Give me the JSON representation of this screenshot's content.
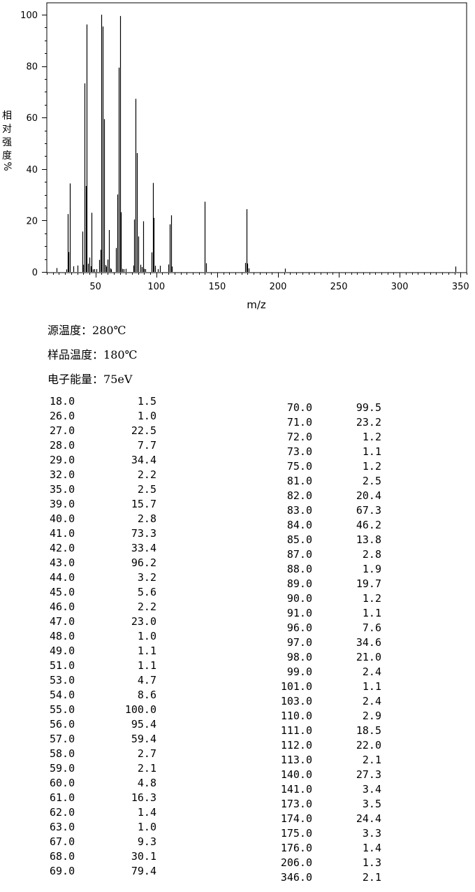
{
  "chart_data": {
    "type": "bar",
    "xlabel": "m/z",
    "ylabel": [
      "相",
      "对",
      "强",
      "度",
      "%"
    ],
    "xlim": [
      10,
      355
    ],
    "ylim": [
      0,
      100
    ],
    "xticks": [
      50,
      100,
      150,
      200,
      250,
      300,
      350
    ],
    "yticks": [
      0,
      20,
      40,
      60,
      80,
      100
    ],
    "grid": false,
    "x": [
      18,
      26,
      27,
      28,
      29,
      32,
      35,
      39,
      40,
      41,
      42,
      43,
      44,
      45,
      46,
      47,
      48,
      49,
      51,
      53,
      54,
      55,
      56,
      57,
      58,
      59,
      60,
      61,
      62,
      63,
      67,
      68,
      69,
      70,
      71,
      72,
      73,
      75,
      81,
      82,
      83,
      84,
      85,
      87,
      88,
      89,
      90,
      91,
      96,
      97,
      98,
      99,
      101,
      103,
      110,
      111,
      112,
      113,
      140,
      141,
      173,
      174,
      175,
      176,
      206,
      346
    ],
    "values": [
      1.5,
      1.0,
      22.5,
      7.7,
      34.4,
      2.2,
      2.5,
      15.7,
      2.8,
      73.3,
      33.4,
      96.2,
      3.2,
      5.6,
      2.2,
      23.0,
      1.0,
      1.1,
      1.1,
      4.7,
      8.6,
      100.0,
      95.4,
      59.4,
      2.7,
      2.1,
      4.8,
      16.3,
      1.4,
      1.0,
      9.3,
      30.1,
      79.4,
      99.5,
      23.2,
      1.2,
      1.1,
      1.2,
      2.5,
      20.4,
      67.3,
      46.2,
      13.8,
      2.8,
      1.9,
      19.7,
      1.2,
      1.1,
      7.6,
      34.6,
      21.0,
      2.4,
      1.1,
      2.4,
      2.9,
      18.5,
      22.0,
      2.1,
      27.3,
      3.4,
      3.5,
      24.4,
      3.3,
      1.4,
      1.3,
      2.1
    ]
  },
  "info": [
    {
      "label": "源温度：",
      "value": "280℃"
    },
    {
      "label": "样品温度：",
      "value": "180℃"
    },
    {
      "label": "电子能量：",
      "value": "75eV"
    }
  ],
  "peaks_left": [
    {
      "mz": "18.0",
      "ab": "1.5"
    },
    {
      "mz": "26.0",
      "ab": "1.0"
    },
    {
      "mz": "27.0",
      "ab": "22.5"
    },
    {
      "mz": "28.0",
      "ab": "7.7"
    },
    {
      "mz": "29.0",
      "ab": "34.4"
    },
    {
      "mz": "32.0",
      "ab": "2.2"
    },
    {
      "mz": "35.0",
      "ab": "2.5"
    },
    {
      "mz": "39.0",
      "ab": "15.7"
    },
    {
      "mz": "40.0",
      "ab": "2.8"
    },
    {
      "mz": "41.0",
      "ab": "73.3"
    },
    {
      "mz": "42.0",
      "ab": "33.4"
    },
    {
      "mz": "43.0",
      "ab": "96.2"
    },
    {
      "mz": "44.0",
      "ab": "3.2"
    },
    {
      "mz": "45.0",
      "ab": "5.6"
    },
    {
      "mz": "46.0",
      "ab": "2.2"
    },
    {
      "mz": "47.0",
      "ab": "23.0"
    },
    {
      "mz": "48.0",
      "ab": "1.0"
    },
    {
      "mz": "49.0",
      "ab": "1.1"
    },
    {
      "mz": "51.0",
      "ab": "1.1"
    },
    {
      "mz": "53.0",
      "ab": "4.7"
    },
    {
      "mz": "54.0",
      "ab": "8.6"
    },
    {
      "mz": "55.0",
      "ab": "100.0"
    },
    {
      "mz": "56.0",
      "ab": "95.4"
    },
    {
      "mz": "57.0",
      "ab": "59.4"
    },
    {
      "mz": "58.0",
      "ab": "2.7"
    },
    {
      "mz": "59.0",
      "ab": "2.1"
    },
    {
      "mz": "60.0",
      "ab": "4.8"
    },
    {
      "mz": "61.0",
      "ab": "16.3"
    },
    {
      "mz": "62.0",
      "ab": "1.4"
    },
    {
      "mz": "63.0",
      "ab": "1.0"
    },
    {
      "mz": "67.0",
      "ab": "9.3"
    },
    {
      "mz": "68.0",
      "ab": "30.1"
    },
    {
      "mz": "69.0",
      "ab": "79.4"
    }
  ],
  "peaks_right": [
    {
      "mz": "70.0",
      "ab": "99.5"
    },
    {
      "mz": "71.0",
      "ab": "23.2"
    },
    {
      "mz": "72.0",
      "ab": "1.2"
    },
    {
      "mz": "73.0",
      "ab": "1.1"
    },
    {
      "mz": "75.0",
      "ab": "1.2"
    },
    {
      "mz": "81.0",
      "ab": "2.5"
    },
    {
      "mz": "82.0",
      "ab": "20.4"
    },
    {
      "mz": "83.0",
      "ab": "67.3"
    },
    {
      "mz": "84.0",
      "ab": "46.2"
    },
    {
      "mz": "85.0",
      "ab": "13.8"
    },
    {
      "mz": "87.0",
      "ab": "2.8"
    },
    {
      "mz": "88.0",
      "ab": "1.9"
    },
    {
      "mz": "89.0",
      "ab": "19.7"
    },
    {
      "mz": "90.0",
      "ab": "1.2"
    },
    {
      "mz": "91.0",
      "ab": "1.1"
    },
    {
      "mz": "96.0",
      "ab": "7.6"
    },
    {
      "mz": "97.0",
      "ab": "34.6"
    },
    {
      "mz": "98.0",
      "ab": "21.0"
    },
    {
      "mz": "99.0",
      "ab": "2.4"
    },
    {
      "mz": "101.0",
      "ab": "1.1"
    },
    {
      "mz": "103.0",
      "ab": "2.4"
    },
    {
      "mz": "110.0",
      "ab": "2.9"
    },
    {
      "mz": "111.0",
      "ab": "18.5"
    },
    {
      "mz": "112.0",
      "ab": "22.0"
    },
    {
      "mz": "113.0",
      "ab": "2.1"
    },
    {
      "mz": "140.0",
      "ab": "27.3"
    },
    {
      "mz": "141.0",
      "ab": "3.4"
    },
    {
      "mz": "173.0",
      "ab": "3.5"
    },
    {
      "mz": "174.0",
      "ab": "24.4"
    },
    {
      "mz": "175.0",
      "ab": "3.3"
    },
    {
      "mz": "176.0",
      "ab": "1.4"
    },
    {
      "mz": "206.0",
      "ab": "1.3"
    },
    {
      "mz": "346.0",
      "ab": "2.1"
    }
  ]
}
